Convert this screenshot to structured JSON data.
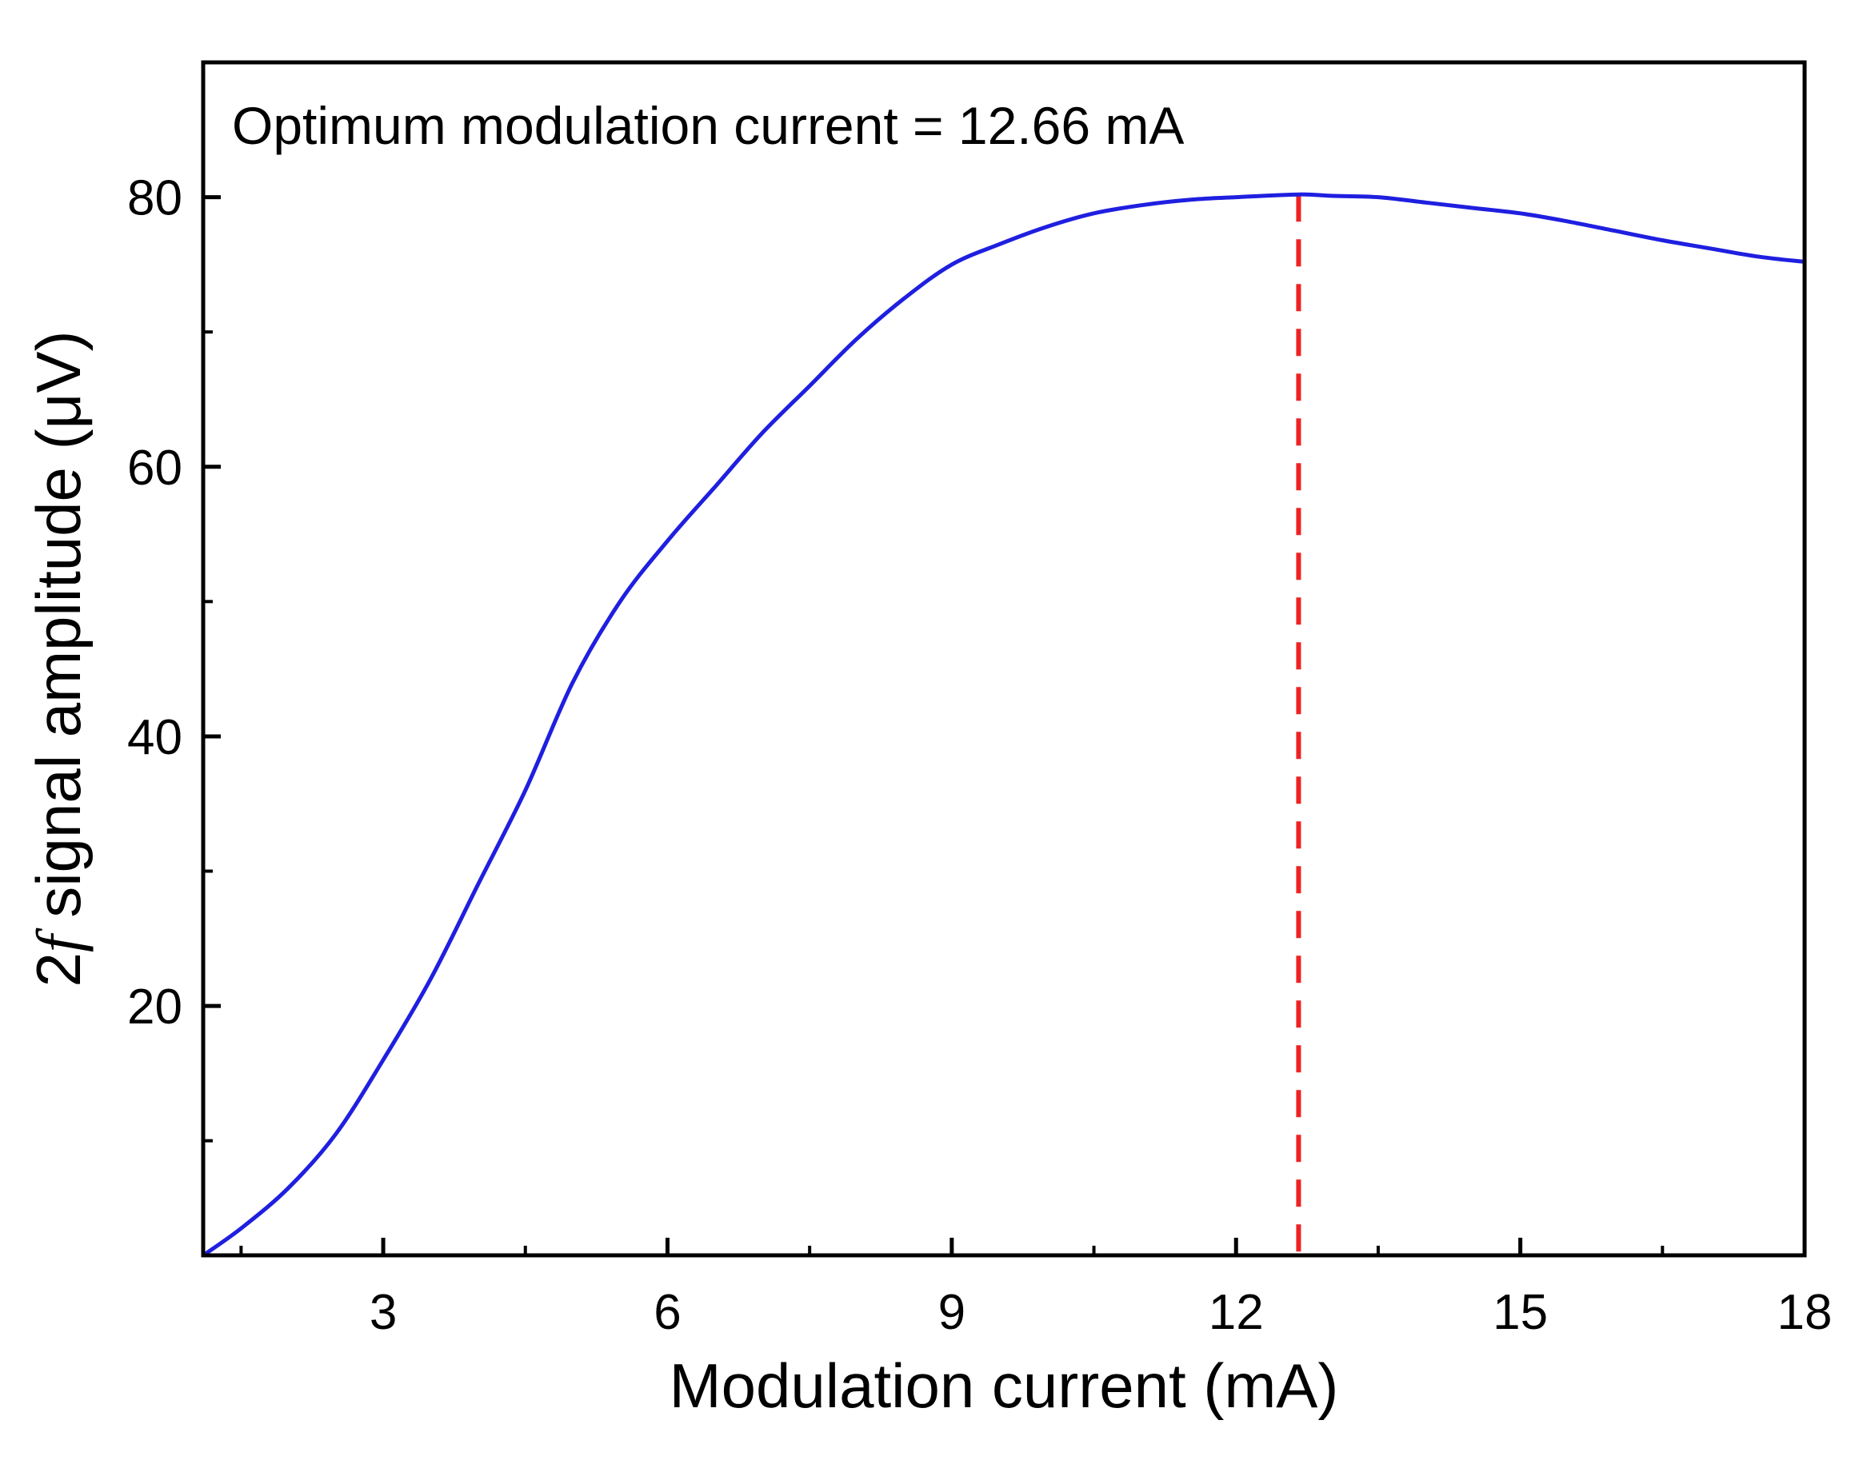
{
  "chart_data": {
    "type": "line",
    "title": "",
    "annotation": "Optimum modulation current = 12.66 mA",
    "xlabel": "Modulation current (mA)",
    "ylabel_prefix": "2",
    "ylabel_italic": "f",
    "ylabel_suffix": " signal amplitude (μV)",
    "xlim": [
      1.1,
      18
    ],
    "ylim": [
      1.5,
      90
    ],
    "xticks": [
      3,
      6,
      9,
      12,
      15,
      18
    ],
    "xtick_labels": [
      "3",
      "6",
      "9",
      "12",
      "15",
      "18"
    ],
    "xminor": [
      1.5,
      4.5,
      7.5,
      10.5,
      13.5,
      16.5
    ],
    "yticks": [
      20,
      40,
      60,
      80
    ],
    "ytick_labels": [
      "20",
      "40",
      "60",
      "80"
    ],
    "yminor": [
      10,
      30,
      50,
      70
    ],
    "grid": false,
    "series": [
      {
        "name": "2f signal amplitude",
        "color": "#1f1fe0",
        "x": [
          1.1,
          1.5,
          2.0,
          2.5,
          3.0,
          3.5,
          4.0,
          4.5,
          5.0,
          5.5,
          6.0,
          6.5,
          7.0,
          7.5,
          8.0,
          8.5,
          9.0,
          9.5,
          10.0,
          10.5,
          11.0,
          11.5,
          12.0,
          12.66,
          13.0,
          13.5,
          14.0,
          14.5,
          15.0,
          15.5,
          16.0,
          16.5,
          17.0,
          17.5,
          18.0
        ],
        "y": [
          1.5,
          3.5,
          6.5,
          10.5,
          16,
          22,
          29,
          36,
          44,
          50,
          54.5,
          58.5,
          62.5,
          66,
          69.5,
          72.5,
          75,
          76.5,
          77.8,
          78.8,
          79.4,
          79.8,
          80.0,
          80.2,
          80.1,
          80.0,
          79.6,
          79.2,
          78.8,
          78.2,
          77.5,
          76.8,
          76.2,
          75.6,
          75.2
        ]
      }
    ],
    "vline": {
      "x": 12.66,
      "color": "#ee2222",
      "style": "dashed"
    }
  }
}
